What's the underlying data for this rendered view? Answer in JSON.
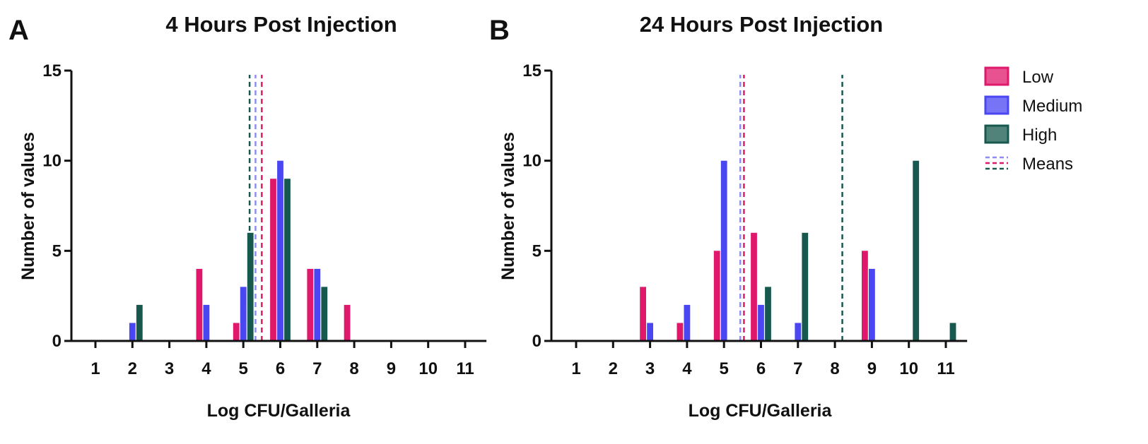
{
  "legend": {
    "position": "right",
    "entries": [
      {
        "label": "Low",
        "kind": "bar",
        "color": "#e0186c"
      },
      {
        "label": "Medium",
        "kind": "bar",
        "color": "#4a46f2"
      },
      {
        "label": "High",
        "kind": "bar",
        "color": "#17594e"
      },
      {
        "label": "Means",
        "kind": "dashed-lines",
        "colors": [
          "#8f8cf4",
          "#e0186c",
          "#17594e"
        ]
      }
    ]
  },
  "chart_data": [
    {
      "panel": "A",
      "type": "bar",
      "title": "4 Hours Post Injection",
      "xlabel": "Log CFU/Galleria",
      "ylabel": "Number of values",
      "xlim": [
        0.5,
        11.5
      ],
      "ylim": [
        0,
        15
      ],
      "xticks": [
        1,
        2,
        3,
        4,
        5,
        6,
        7,
        8,
        9,
        10,
        11
      ],
      "yticks": [
        0,
        5,
        10,
        15
      ],
      "grid": false,
      "categories": [
        1,
        2,
        3,
        4,
        5,
        6,
        7,
        8,
        9,
        10,
        11
      ],
      "series": [
        {
          "name": "Low",
          "color": "#e0186c",
          "values": [
            0,
            0,
            0,
            4,
            1,
            9,
            4,
            2,
            0,
            0,
            0
          ]
        },
        {
          "name": "Medium",
          "color": "#4a46f2",
          "values": [
            0,
            1,
            0,
            2,
            3,
            10,
            4,
            0,
            0,
            0,
            0
          ]
        },
        {
          "name": "High",
          "color": "#17594e",
          "values": [
            0,
            2,
            0,
            0,
            6,
            9,
            3,
            0,
            0,
            0,
            0
          ]
        }
      ],
      "means": [
        {
          "series": "Low",
          "value": 5.5,
          "color": "#e0186c"
        },
        {
          "series": "Medium",
          "value": 5.33,
          "color": "#8f8cf4"
        },
        {
          "series": "High",
          "value": 5.17,
          "color": "#17594e"
        }
      ]
    },
    {
      "panel": "B",
      "type": "bar",
      "title": "24 Hours Post Injection",
      "xlabel": "Log CFU/Galleria",
      "ylabel": "Number of values",
      "xlim": [
        0.5,
        11.5
      ],
      "ylim": [
        0,
        15
      ],
      "xticks": [
        1,
        2,
        3,
        4,
        5,
        6,
        7,
        8,
        9,
        10,
        11
      ],
      "yticks": [
        0,
        5,
        10,
        15
      ],
      "grid": false,
      "categories": [
        1,
        2,
        3,
        4,
        5,
        6,
        7,
        8,
        9,
        10,
        11
      ],
      "series": [
        {
          "name": "Low",
          "color": "#e0186c",
          "values": [
            0,
            0,
            3,
            1,
            5,
            6,
            0,
            0,
            5,
            0,
            0
          ]
        },
        {
          "name": "Medium",
          "color": "#4a46f2",
          "values": [
            0,
            0,
            1,
            2,
            10,
            2,
            1,
            0,
            4,
            0,
            0
          ]
        },
        {
          "name": "High",
          "color": "#17594e",
          "values": [
            0,
            0,
            0,
            0,
            0,
            3,
            6,
            0,
            0,
            10,
            1
          ]
        }
      ],
      "means": [
        {
          "series": "Medium",
          "value": 5.44,
          "color": "#8f8cf4"
        },
        {
          "series": "Low",
          "value": 5.54,
          "color": "#e0186c"
        },
        {
          "series": "High",
          "value": 8.2,
          "color": "#17594e"
        }
      ]
    }
  ]
}
